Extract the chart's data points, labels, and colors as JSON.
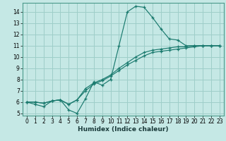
{
  "xlabel": "Humidex (Indice chaleur)",
  "bg_color": "#c5e8e5",
  "grid_color": "#9ecec9",
  "line_color": "#1a7a6e",
  "spine_color": "#4a9a8a",
  "xlim": [
    -0.5,
    23.5
  ],
  "ylim": [
    4.8,
    14.8
  ],
  "xticks": [
    0,
    1,
    2,
    3,
    4,
    5,
    6,
    7,
    8,
    9,
    10,
    11,
    12,
    13,
    14,
    15,
    16,
    17,
    18,
    19,
    20,
    21,
    22,
    23
  ],
  "yticks": [
    5,
    6,
    7,
    8,
    9,
    10,
    11,
    12,
    13,
    14
  ],
  "curve1_x": [
    0,
    1,
    2,
    3,
    4,
    5,
    6,
    7,
    8,
    9,
    10,
    11,
    12,
    13,
    14,
    15,
    16,
    17,
    18,
    19,
    20,
    21,
    22,
    23
  ],
  "curve1_y": [
    6.0,
    5.8,
    5.6,
    6.1,
    6.2,
    5.3,
    5.0,
    6.3,
    7.8,
    7.5,
    8.0,
    11.0,
    14.0,
    14.5,
    14.4,
    13.5,
    12.5,
    11.6,
    11.5,
    11.0,
    11.0,
    11.0,
    11.0,
    11.0
  ],
  "curve2_x": [
    0,
    1,
    2,
    3,
    4,
    5,
    6,
    7,
    8,
    9,
    10,
    11,
    12,
    13,
    14,
    15,
    16,
    17,
    18,
    19,
    20,
    21,
    22,
    23
  ],
  "curve2_y": [
    6.0,
    6.0,
    5.9,
    6.1,
    6.2,
    5.8,
    6.2,
    7.0,
    7.6,
    7.9,
    8.3,
    8.8,
    9.3,
    9.7,
    10.1,
    10.4,
    10.5,
    10.6,
    10.7,
    10.8,
    10.9,
    11.0,
    11.0,
    11.0
  ],
  "curve3_x": [
    0,
    1,
    2,
    3,
    4,
    5,
    6,
    7,
    8,
    9,
    10,
    11,
    12,
    13,
    14,
    15,
    16,
    17,
    18,
    19,
    20,
    21,
    22,
    23
  ],
  "curve3_y": [
    6.0,
    6.0,
    5.9,
    6.1,
    6.2,
    5.8,
    6.2,
    7.2,
    7.7,
    8.0,
    8.4,
    9.0,
    9.5,
    10.0,
    10.4,
    10.6,
    10.7,
    10.8,
    10.9,
    10.9,
    11.0,
    11.0,
    11.0,
    11.0
  ],
  "tick_fontsize": 5.5,
  "xlabel_fontsize": 6.5
}
